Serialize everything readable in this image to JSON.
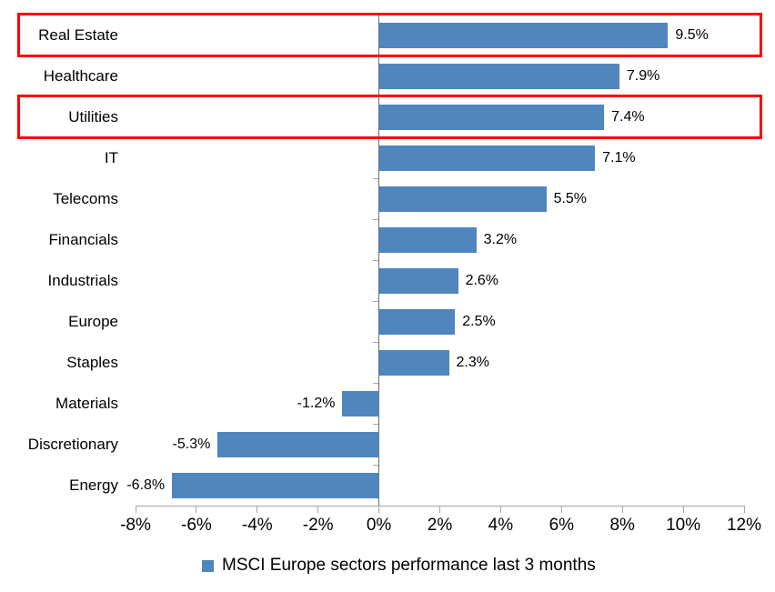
{
  "chart_data": {
    "type": "bar",
    "orientation": "horizontal",
    "categories": [
      "Real Estate",
      "Healthcare",
      "Utilities",
      "IT",
      "Telecoms",
      "Financials",
      "Industrials",
      "Europe",
      "Staples",
      "Materials",
      "Discretionary",
      "Energy"
    ],
    "values": [
      9.5,
      7.9,
      7.4,
      7.1,
      5.5,
      3.2,
      2.6,
      2.5,
      2.3,
      -1.2,
      -5.3,
      -6.8
    ],
    "data_labels": [
      "9.5%",
      "7.9%",
      "7.4%",
      "7.1%",
      "5.5%",
      "3.2%",
      "2.6%",
      "2.5%",
      "2.3%",
      "-1.2%",
      "-5.3%",
      "-6.8%"
    ],
    "x_tick_values": [
      -8,
      -6,
      -4,
      -2,
      0,
      2,
      4,
      6,
      8,
      10,
      12
    ],
    "x_tick_labels": [
      "-8%",
      "-6%",
      "-4%",
      "-2%",
      "0%",
      "2%",
      "4%",
      "6%",
      "8%",
      "10%",
      "12%"
    ],
    "xlim": [
      -8,
      12
    ],
    "grid": false,
    "title": "",
    "xlabel": "",
    "ylabel": "",
    "legend": "MSCI Europe sectors performance last 3 months",
    "legend_position": "bottom",
    "highlighted_categories": [
      "Real Estate",
      "Utilities"
    ],
    "colors": {
      "bar": "#4e86bd",
      "highlight_box": "#ff0000",
      "value_axis": "#a6a6a6",
      "category_axis": "#6e6e6e",
      "text": "#000000",
      "background": "#ffffff"
    }
  }
}
